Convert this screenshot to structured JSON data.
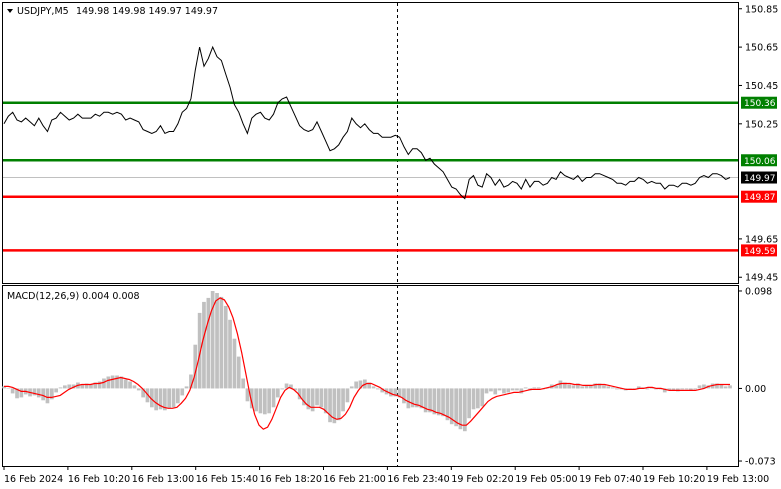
{
  "chart_data": [
    {
      "type": "line",
      "panel": "price",
      "header": {
        "symbol": "USDJPY,M5",
        "ohlc": "149.98 149.98 149.97 149.97"
      },
      "ylim": [
        149.42,
        150.88
      ],
      "y_ticks": [
        "150.85",
        "150.65",
        "150.45",
        "150.25",
        "149.65",
        "149.45"
      ],
      "current_price": "149.97",
      "levels": [
        {
          "label": "150.36",
          "value": 150.36,
          "color": "#008000"
        },
        {
          "label": "150.06",
          "value": 150.06,
          "color": "#008000"
        },
        {
          "label": "149.87",
          "value": 149.87,
          "color": "#ff0000"
        },
        {
          "label": "149.59",
          "value": 149.59,
          "color": "#ff0000"
        }
      ],
      "x_count": 166,
      "series": [
        {
          "values": [
            150.25,
            150.29,
            150.31,
            150.27,
            150.26,
            150.28,
            150.26,
            150.24,
            150.28,
            150.24,
            150.21,
            150.27,
            150.28,
            150.31,
            150.29,
            150.27,
            150.28,
            150.3,
            150.28,
            150.28,
            150.28,
            150.3,
            150.29,
            150.31,
            150.31,
            150.3,
            150.31,
            150.3,
            150.27,
            150.28,
            150.27,
            150.26,
            150.22,
            150.21,
            150.2,
            150.21,
            150.24,
            150.2,
            150.21,
            150.21,
            150.25,
            150.31,
            150.33,
            150.38,
            150.53,
            150.65,
            150.55,
            150.59,
            150.65,
            150.6,
            150.58,
            150.51,
            150.44,
            150.35,
            150.31,
            150.25,
            150.2,
            150.28,
            150.3,
            150.31,
            150.28,
            150.27,
            150.3,
            150.36,
            150.38,
            150.39,
            150.34,
            150.29,
            150.24,
            150.22,
            150.21,
            150.22,
            150.26,
            150.21,
            150.16,
            150.11,
            150.12,
            150.14,
            150.18,
            150.21,
            150.28,
            150.25,
            150.23,
            150.25,
            150.22,
            150.2,
            150.2,
            150.18,
            150.18,
            150.18,
            150.19,
            150.18,
            150.13,
            150.09,
            150.12,
            150.12,
            150.1,
            150.06,
            150.07,
            150.04,
            150.02,
            150.0,
            149.96,
            149.92,
            149.91,
            149.88,
            149.86,
            149.96,
            149.98,
            149.93,
            149.92,
            149.99,
            149.97,
            149.93,
            149.96,
            149.92,
            149.93,
            149.95,
            149.94,
            149.91,
            149.96,
            149.92,
            149.95,
            149.95,
            149.93,
            149.94,
            149.97,
            149.96,
            150.0,
            149.98,
            149.97,
            149.96,
            149.98,
            149.95,
            149.97,
            149.97,
            149.99,
            149.99,
            149.98,
            149.97,
            149.96,
            149.94,
            149.94,
            149.93,
            149.95,
            149.95,
            149.97,
            149.96,
            149.94,
            149.95,
            149.94,
            149.94,
            149.91,
            149.93,
            149.93,
            149.92,
            149.94,
            149.94,
            149.93,
            149.94,
            149.97,
            149.98,
            149.97,
            149.99,
            149.99,
            149.98,
            149.96,
            149.97
          ]
        }
      ]
    },
    {
      "type": "bar",
      "panel": "indicator",
      "title": "MACD(12,26,9) 0.004 0.008",
      "ylim": [
        -0.078,
        0.103
      ],
      "y_ticks": [
        "0.098",
        "0.00",
        "-0.073"
      ],
      "x_count": 166,
      "series": [
        {
          "type": "bar",
          "color": "#c0c0c0",
          "values": [
            0.002,
            0.0,
            -0.005,
            -0.01,
            -0.009,
            -0.006,
            -0.008,
            -0.007,
            -0.009,
            -0.012,
            -0.015,
            -0.011,
            -0.004,
            0.001,
            0.003,
            0.004,
            0.004,
            0.006,
            0.004,
            0.005,
            0.004,
            0.006,
            0.007,
            0.01,
            0.012,
            0.013,
            0.013,
            0.012,
            0.009,
            0.007,
            0.003,
            -0.002,
            -0.009,
            -0.014,
            -0.019,
            -0.022,
            -0.021,
            -0.022,
            -0.02,
            -0.019,
            -0.015,
            -0.007,
            0.002,
            0.014,
            0.044,
            0.076,
            0.087,
            0.091,
            0.098,
            0.096,
            0.092,
            0.083,
            0.069,
            0.05,
            0.032,
            0.01,
            -0.013,
            -0.02,
            -0.023,
            -0.025,
            -0.026,
            -0.025,
            -0.019,
            -0.009,
            -0.001,
            0.005,
            0.004,
            -0.002,
            -0.011,
            -0.017,
            -0.021,
            -0.023,
            -0.017,
            -0.019,
            -0.025,
            -0.034,
            -0.035,
            -0.032,
            -0.023,
            -0.014,
            0.002,
            0.007,
            0.008,
            0.009,
            0.006,
            0.002,
            -0.001,
            -0.004,
            -0.006,
            -0.008,
            -0.008,
            -0.009,
            -0.015,
            -0.02,
            -0.019,
            -0.019,
            -0.02,
            -0.024,
            -0.024,
            -0.026,
            -0.027,
            -0.028,
            -0.032,
            -0.036,
            -0.038,
            -0.041,
            -0.043,
            -0.03,
            -0.021,
            -0.02,
            -0.018,
            -0.005,
            -0.003,
            -0.006,
            -0.002,
            -0.005,
            -0.004,
            -0.002,
            -0.002,
            -0.005,
            0.001,
            -0.002,
            0.001,
            0.001,
            -0.001,
            0.0,
            0.004,
            0.003,
            0.008,
            0.006,
            0.004,
            0.003,
            0.005,
            0.002,
            0.003,
            0.003,
            0.005,
            0.005,
            0.003,
            0.002,
            0.001,
            -0.001,
            -0.001,
            -0.002,
            0.0,
            0.0,
            0.002,
            0.001,
            -0.001,
            0.0,
            -0.001,
            -0.001,
            -0.004,
            -0.002,
            -0.002,
            -0.003,
            -0.001,
            -0.001,
            -0.002,
            -0.001,
            0.003,
            0.004,
            0.003,
            0.005,
            0.005,
            0.004,
            0.002,
            0.003
          ]
        },
        {
          "type": "line",
          "color": "#ff0000",
          "values": [
            0.002,
            0.002,
            0.001,
            -0.001,
            -0.003,
            -0.003,
            -0.004,
            -0.005,
            -0.006,
            -0.007,
            -0.009,
            -0.009,
            -0.008,
            -0.007,
            -0.004,
            -0.001,
            0.001,
            0.003,
            0.004,
            0.004,
            0.004,
            0.005,
            0.005,
            0.006,
            0.008,
            0.009,
            0.01,
            0.011,
            0.01,
            0.009,
            0.007,
            0.004,
            -0.0,
            -0.005,
            -0.01,
            -0.014,
            -0.017,
            -0.019,
            -0.02,
            -0.02,
            -0.019,
            -0.015,
            -0.01,
            -0.002,
            0.011,
            0.029,
            0.048,
            0.064,
            0.078,
            0.088,
            0.091,
            0.089,
            0.082,
            0.071,
            0.055,
            0.036,
            0.014,
            -0.008,
            -0.026,
            -0.037,
            -0.041,
            -0.039,
            -0.031,
            -0.02,
            -0.009,
            -0.002,
            0.001,
            -0.001,
            -0.005,
            -0.011,
            -0.016,
            -0.019,
            -0.019,
            -0.019,
            -0.021,
            -0.025,
            -0.029,
            -0.031,
            -0.03,
            -0.026,
            -0.019,
            -0.009,
            -0.002,
            0.003,
            0.005,
            0.005,
            0.003,
            0.001,
            -0.002,
            -0.004,
            -0.006,
            -0.007,
            -0.009,
            -0.012,
            -0.014,
            -0.016,
            -0.017,
            -0.019,
            -0.021,
            -0.022,
            -0.024,
            -0.025,
            -0.027,
            -0.029,
            -0.032,
            -0.035,
            -0.037,
            -0.037,
            -0.033,
            -0.028,
            -0.023,
            -0.018,
            -0.013,
            -0.01,
            -0.008,
            -0.007,
            -0.006,
            -0.005,
            -0.004,
            -0.004,
            -0.003,
            -0.002,
            -0.001,
            -0.001,
            -0.001,
            -0.0,
            0.001,
            0.002,
            0.004,
            0.005,
            0.005,
            0.005,
            0.004,
            0.004,
            0.003,
            0.003,
            0.003,
            0.004,
            0.004,
            0.004,
            0.003,
            0.002,
            0.001,
            0.0,
            -0.001,
            -0.001,
            -0.001,
            -0.0,
            0.0,
            0.001,
            0.001,
            0.0,
            -0.0,
            -0.001,
            -0.002,
            -0.002,
            -0.002,
            -0.002,
            -0.002,
            -0.002,
            -0.002,
            -0.001,
            0.0,
            0.002,
            0.003,
            0.004,
            0.004,
            0.004,
            0.004
          ]
        }
      ]
    }
  ],
  "time_axis": [
    "16 Feb 2024",
    "16 Feb 10:20",
    "16 Feb 13:00",
    "16 Feb 15:40",
    "16 Feb 18:20",
    "16 Feb 21:00",
    "16 Feb 23:40",
    "19 Feb 02:20",
    "19 Feb 05:00",
    "19 Feb 07:40",
    "19 Feb 10:20",
    "19 Feb 13:00"
  ]
}
